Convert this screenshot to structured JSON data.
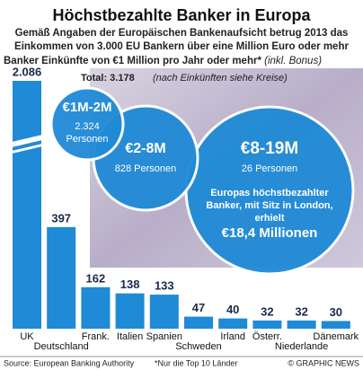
{
  "chart_data": {
    "type": "bar",
    "title": "Höchstbezahlte Banker in Europa",
    "subtitle": [
      "Gemäß Angaben der Europäischen Bankenaufsicht betrug 2013 das",
      "Einkommen von 3.000 EU Bankern über eine Million Euro oder mehr"
    ],
    "axis_title": "Banker Einkünfte von €1 Million pro Jahr oder mehr*",
    "axis_title_note": "(inkl. Bonus)",
    "total": "Total: 3.178",
    "total_note": "(nach Einkünften siehe Kreise)",
    "categories": [
      "UK",
      "Deutschland",
      "Frank.",
      "Italien",
      "Spanien",
      "Schweden",
      "Irland",
      "Österr.",
      "Niederlande",
      "Dänemark"
    ],
    "values": [
      2086,
      397,
      162,
      138,
      133,
      47,
      40,
      32,
      32,
      30
    ],
    "value_labels": [
      "2.086",
      "397",
      "162",
      "138",
      "133",
      "47",
      "40",
      "32",
      "32",
      "30"
    ],
    "color": "#1f8ad6",
    "bubbles": [
      {
        "lines": [
          "€1M-2M",
          "2.324",
          "Personen"
        ]
      },
      {
        "lines": [
          "€2-8M",
          "828 Personen"
        ]
      },
      {
        "lines": [
          "€8-19M",
          "26 Personen",
          "Europas höchstbezahlter",
          "Banker, mit Sitz in London,",
          "erhielt",
          "€18,4 Millionen"
        ]
      }
    ],
    "source": "Source: European Banking Authority",
    "footnote": "*Nur die Top 10 Länder",
    "credit": "© GRAPHIC NEWS"
  }
}
